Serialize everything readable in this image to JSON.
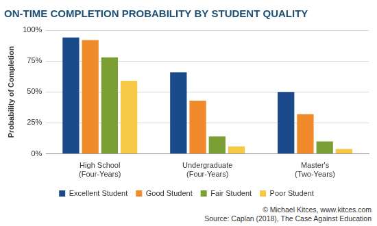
{
  "chart_data": {
    "type": "bar",
    "title": "ON-TIME COMPLETION PROBABILITY BY STUDENT QUALITY",
    "y_label": "Probability of Completion",
    "categories": [
      [
        "High School",
        "(Four-Years)"
      ],
      [
        "Undergraduate",
        "(Four-Years)"
      ],
      [
        "Master's",
        "(Two-Years)"
      ]
    ],
    "series": [
      {
        "name": "Excellent Student",
        "color": "#1b4a8a",
        "values": [
          94,
          66,
          50
        ]
      },
      {
        "name": "Good Student",
        "color": "#f08a2b",
        "values": [
          92,
          43,
          32
        ]
      },
      {
        "name": "Fair Student",
        "color": "#7a9f35",
        "values": [
          78,
          14,
          10
        ]
      },
      {
        "name": "Poor Student",
        "color": "#f7c846",
        "values": [
          59,
          6,
          4
        ]
      }
    ],
    "ylim": [
      0,
      100
    ],
    "yticks": [
      {
        "value": 0,
        "label": "0%"
      },
      {
        "value": 25,
        "label": "25%"
      },
      {
        "value": 50,
        "label": "50%"
      },
      {
        "value": 75,
        "label": "75%"
      },
      {
        "value": 100,
        "label": "100%"
      }
    ],
    "grid": true,
    "legend": "bottom",
    "annotations": [
      "© Michael Kitces, www.kitces.com",
      "Source: Caplan (2018), The Case Against Education"
    ]
  }
}
